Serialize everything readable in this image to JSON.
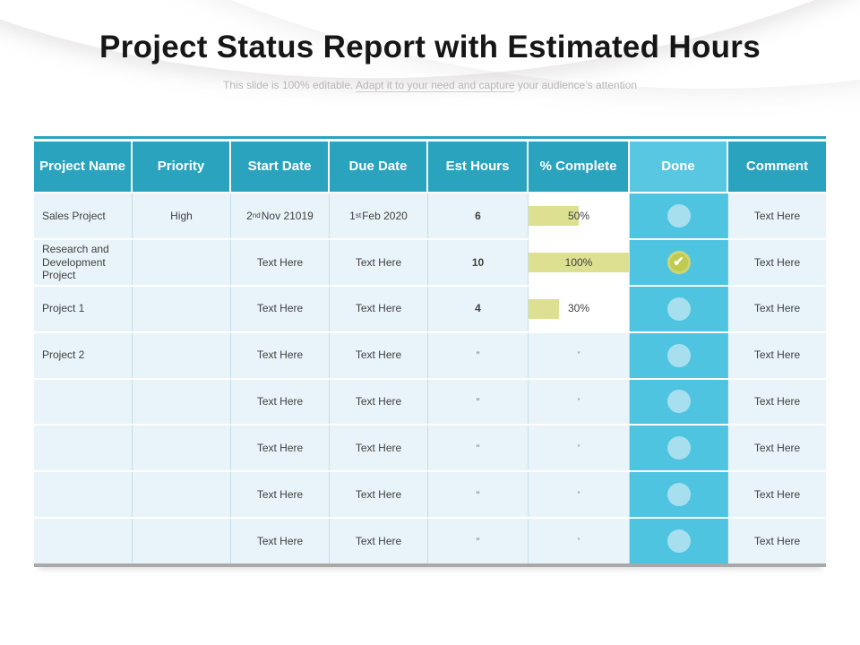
{
  "slide": {
    "title": "Project Status Report with Estimated Hours",
    "subtitle_prefix": "This slide is 100% editable. ",
    "subtitle_underlined": "Adapt it to your need and capture",
    "subtitle_suffix": " your audience’s attention"
  },
  "colors": {
    "title_text": "#161616",
    "subtitle_text": "#b8b6b6",
    "header_teal": "#2aa3bf",
    "done_header": "#58c7e2",
    "done_cell": "#4ec4e0",
    "row_bg": "#e8f4f9",
    "bar_cell_bg": "#ffffff",
    "bar_fill": "#dde091",
    "dot_fill": "#a7dfee",
    "check_fill": "#c0ca4e",
    "header_text": "#ffffff",
    "cell_text": "#404040",
    "table_bottom_border": "#a9a9a9"
  },
  "table": {
    "ditto_mark": "”",
    "columns": [
      {
        "key": "project",
        "label": "Project Name"
      },
      {
        "key": "priority",
        "label": "Priority"
      },
      {
        "key": "start",
        "label": "Start Date"
      },
      {
        "key": "due",
        "label": "Due Date"
      },
      {
        "key": "est",
        "label": "Est Hours"
      },
      {
        "key": "complete",
        "label": "% Complete"
      },
      {
        "key": "done",
        "label": "Done"
      },
      {
        "key": "comment",
        "label": "Comment"
      }
    ],
    "rows": [
      {
        "project": "Sales Project",
        "priority": "High",
        "start": {
          "pre": "2",
          "sup": "nd",
          "post": " Nov 21019"
        },
        "due": {
          "pre": "1",
          "sup": "st",
          "post": " Feb 2020"
        },
        "est": "6",
        "complete": {
          "type": "bar",
          "label": "50%",
          "pct": 50
        },
        "done": {
          "icon": "circle-icon"
        },
        "comment": "Text Here"
      },
      {
        "project": "Research and Development Project",
        "priority": "",
        "start": {
          "pre": "Text Here",
          "sup": "",
          "post": ""
        },
        "due": {
          "pre": "Text Here",
          "sup": "",
          "post": ""
        },
        "est": "10",
        "complete": {
          "type": "bar",
          "label": "100%",
          "pct": 100
        },
        "done": {
          "icon": "check-icon"
        },
        "comment": "Text Here"
      },
      {
        "project": "Project 1",
        "priority": "",
        "start": {
          "pre": "Text Here",
          "sup": "",
          "post": ""
        },
        "due": {
          "pre": "Text Here",
          "sup": "",
          "post": ""
        },
        "est": "4",
        "complete": {
          "type": "bar",
          "label": "30%",
          "pct": 30
        },
        "done": {
          "icon": "circle-icon"
        },
        "comment": "Text Here"
      },
      {
        "project": "Project 2",
        "priority": "",
        "start": {
          "pre": "Text Here",
          "sup": "",
          "post": ""
        },
        "due": {
          "pre": "Text Here",
          "sup": "",
          "post": ""
        },
        "est": "ditto",
        "complete": {
          "type": "ditto"
        },
        "done": {
          "icon": "circle-icon"
        },
        "comment": "Text Here"
      },
      {
        "project": "",
        "priority": "",
        "start": {
          "pre": "Text Here",
          "sup": "",
          "post": ""
        },
        "due": {
          "pre": "Text Here",
          "sup": "",
          "post": ""
        },
        "est": "ditto",
        "complete": {
          "type": "ditto"
        },
        "done": {
          "icon": "circle-icon"
        },
        "comment": "Text Here"
      },
      {
        "project": "",
        "priority": "",
        "start": {
          "pre": "Text Here",
          "sup": "",
          "post": ""
        },
        "due": {
          "pre": "Text Here",
          "sup": "",
          "post": ""
        },
        "est": "ditto",
        "complete": {
          "type": "ditto"
        },
        "done": {
          "icon": "circle-icon"
        },
        "comment": "Text Here"
      },
      {
        "project": "",
        "priority": "",
        "start": {
          "pre": "Text Here",
          "sup": "",
          "post": ""
        },
        "due": {
          "pre": "Text Here",
          "sup": "",
          "post": ""
        },
        "est": "ditto",
        "complete": {
          "type": "ditto"
        },
        "done": {
          "icon": "circle-icon"
        },
        "comment": "Text Here"
      },
      {
        "project": "",
        "priority": "",
        "start": {
          "pre": "Text Here",
          "sup": "",
          "post": ""
        },
        "due": {
          "pre": "Text Here",
          "sup": "",
          "post": ""
        },
        "est": "ditto",
        "complete": {
          "type": "ditto"
        },
        "done": {
          "icon": "circle-icon"
        },
        "comment": "Text Here"
      }
    ]
  }
}
